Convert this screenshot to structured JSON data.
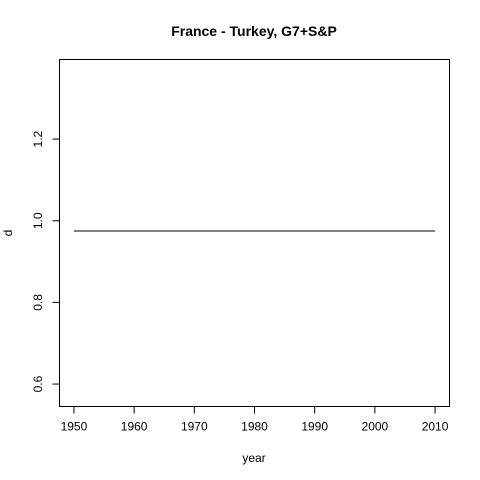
{
  "chart_data": {
    "type": "line",
    "title": "France - Turkey, G7+S&P",
    "xlabel": "year",
    "ylabel": "d",
    "xlim": [
      1947.6,
      2012.4
    ],
    "ylim": [
      0.545,
      1.395
    ],
    "x_ticks": [
      1950,
      1960,
      1970,
      1980,
      1990,
      2000,
      2010
    ],
    "y_ticks": [
      0.6,
      0.8,
      1.0,
      1.2
    ],
    "grid": false,
    "series": [
      {
        "color": "#000000",
        "x": [
          1950,
          2010
        ],
        "y": [
          0.975,
          0.975
        ]
      }
    ]
  }
}
